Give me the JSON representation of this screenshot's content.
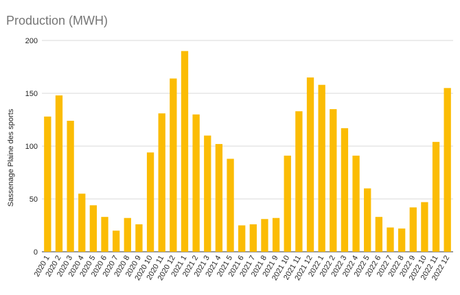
{
  "chart_data": {
    "type": "bar",
    "title": "Production (MWH)",
    "xlabel": "",
    "ylabel": "Sassenage Plaine des sports",
    "ylim": [
      0,
      200
    ],
    "yticks": [
      0,
      50,
      100,
      150,
      200
    ],
    "grid": true,
    "legend": "none",
    "bar_color": "#fbbc04",
    "categories": [
      "2020 1",
      "2020 2",
      "2020 3",
      "2020 4",
      "2020 5",
      "2020 6",
      "2020 7",
      "2020 8",
      "2020 9",
      "2020 10",
      "2020 11",
      "2020 12",
      "2021 1",
      "2021 2",
      "2021 3",
      "2021 4",
      "2021 5",
      "2021 6",
      "2021 7",
      "2021 8",
      "2021 9",
      "2021 10",
      "2021 11",
      "2021 12",
      "2022 1",
      "2022 2",
      "2022 3",
      "2022 4",
      "2022 5",
      "2022 6",
      "2022 7",
      "2022 8",
      "2022 9",
      "2022 10",
      "2022 11",
      "2022 12"
    ],
    "values": [
      128,
      148,
      124,
      55,
      44,
      33,
      20,
      32,
      26,
      94,
      131,
      164,
      190,
      130,
      110,
      102,
      88,
      25,
      26,
      31,
      32,
      91,
      133,
      165,
      158,
      135,
      117,
      91,
      60,
      33,
      23,
      22,
      42,
      47,
      104,
      155
    ]
  }
}
